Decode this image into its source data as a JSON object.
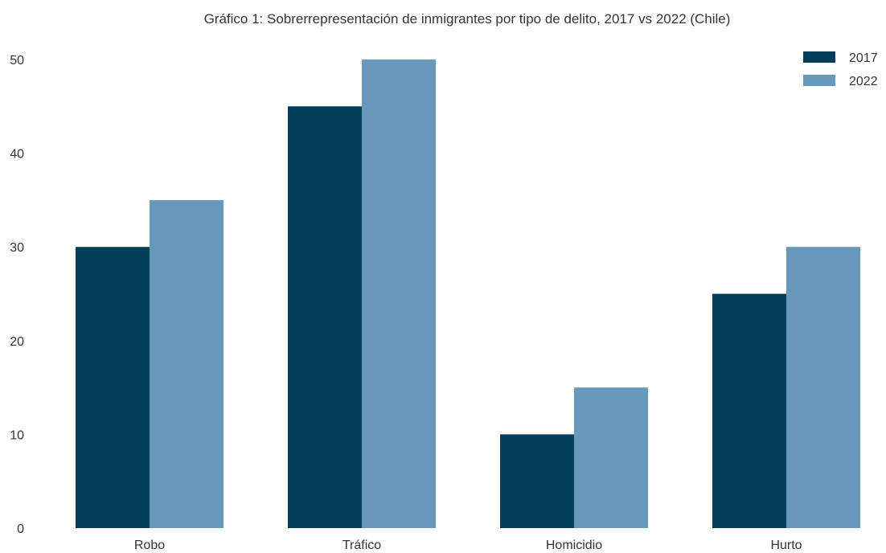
{
  "chart_data": {
    "type": "bar",
    "title": "Gráfico 1: Sobrerrepresentación de inmigrantes por tipo de delito, 2017 vs 2022 (Chile)",
    "xlabel": "",
    "ylabel": "",
    "categories": [
      "Robo",
      "Tráfico",
      "Homicidio",
      "Hurto"
    ],
    "series": [
      {
        "name": "2017",
        "values": [
          30,
          45,
          10,
          25
        ],
        "color": "#023e58"
      },
      {
        "name": "2022",
        "values": [
          35,
          50,
          15,
          30
        ],
        "color": "#6699bb"
      }
    ],
    "ylim": [
      0,
      50
    ],
    "yticks": [
      "0",
      "10",
      "20",
      "30",
      "40",
      "50"
    ],
    "grid": false,
    "legend_position": "top-right"
  }
}
